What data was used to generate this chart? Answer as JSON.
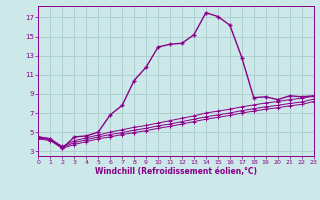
{
  "xlabel": "Windchill (Refroidissement éolien,°C)",
  "background_color": "#cce8e8",
  "grid_color": "#aacccc",
  "line_color": "#880088",
  "xlim": [
    0,
    23
  ],
  "ylim": [
    2.5,
    18.2
  ],
  "xticks": [
    0,
    1,
    2,
    3,
    4,
    5,
    6,
    7,
    8,
    9,
    10,
    11,
    12,
    13,
    14,
    15,
    16,
    17,
    18,
    19,
    20,
    21,
    22,
    23
  ],
  "yticks": [
    3,
    5,
    7,
    9,
    11,
    13,
    15,
    17
  ],
  "curve1_x": [
    0,
    1,
    2,
    3,
    4,
    5,
    6,
    7,
    8,
    9,
    10,
    11,
    12,
    13,
    14,
    15,
    16,
    17,
    18,
    19,
    20,
    21,
    22,
    23
  ],
  "curve1_y": [
    4.5,
    4.3,
    3.3,
    4.5,
    4.6,
    5.0,
    6.8,
    7.8,
    10.4,
    11.8,
    13.9,
    14.2,
    14.3,
    15.2,
    17.5,
    17.1,
    16.2,
    12.8,
    8.6,
    8.7,
    8.4,
    8.8,
    8.7,
    8.8
  ],
  "curve2_x": [
    0,
    1,
    2,
    3,
    4,
    5,
    6,
    7,
    8,
    9,
    10,
    11,
    12,
    13,
    14,
    15,
    16,
    17,
    18,
    19,
    20,
    21,
    22,
    23
  ],
  "curve2_y": [
    4.5,
    4.3,
    3.5,
    4.1,
    4.4,
    4.7,
    5.0,
    5.25,
    5.5,
    5.7,
    5.95,
    6.2,
    6.45,
    6.7,
    7.0,
    7.2,
    7.4,
    7.65,
    7.85,
    8.05,
    8.2,
    8.4,
    8.55,
    8.75
  ],
  "curve3_x": [
    0,
    1,
    2,
    3,
    4,
    5,
    6,
    7,
    8,
    9,
    10,
    11,
    12,
    13,
    14,
    15,
    16,
    17,
    18,
    19,
    20,
    21,
    22,
    23
  ],
  "curve3_y": [
    4.4,
    4.2,
    3.4,
    3.9,
    4.2,
    4.5,
    4.75,
    4.95,
    5.2,
    5.4,
    5.65,
    5.85,
    6.1,
    6.35,
    6.6,
    6.8,
    7.0,
    7.25,
    7.45,
    7.65,
    7.8,
    8.0,
    8.15,
    8.45
  ],
  "curve4_x": [
    0,
    1,
    2,
    3,
    4,
    5,
    6,
    7,
    8,
    9,
    10,
    11,
    12,
    13,
    14,
    15,
    16,
    17,
    18,
    19,
    20,
    21,
    22,
    23
  ],
  "curve4_y": [
    4.3,
    4.1,
    3.3,
    3.7,
    4.0,
    4.3,
    4.5,
    4.75,
    4.95,
    5.15,
    5.4,
    5.6,
    5.85,
    6.1,
    6.35,
    6.55,
    6.75,
    7.0,
    7.2,
    7.4,
    7.55,
    7.75,
    7.9,
    8.2
  ]
}
